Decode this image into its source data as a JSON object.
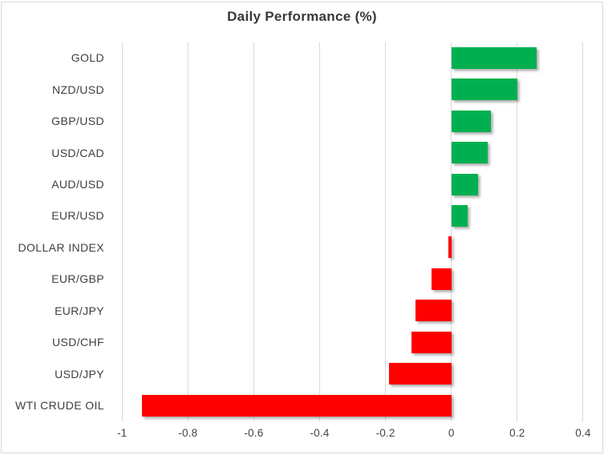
{
  "chart_data": {
    "type": "bar",
    "orientation": "horizontal",
    "title": "Daily Performance (%)",
    "categories": [
      "GOLD",
      "NZD/USD",
      "GBP/USD",
      "USD/CAD",
      "AUD/USD",
      "EUR/USD",
      "DOLLAR INDEX",
      "EUR/GBP",
      "EUR/JPY",
      "USD/CHF",
      "USD/JPY",
      "WTI CRUDE OIL"
    ],
    "values": [
      0.26,
      0.2,
      0.12,
      0.11,
      0.08,
      0.05,
      -0.01,
      -0.06,
      -0.11,
      -0.12,
      -0.19,
      -0.94
    ],
    "xlabel": "",
    "ylabel": "",
    "xlim": [
      -1,
      0.4
    ],
    "xticks": [
      -1,
      -0.8,
      -0.6,
      -0.4,
      -0.2,
      0,
      0.2,
      0.4
    ],
    "xtick_labels": [
      "-1",
      "-0.8",
      "-0.6",
      "-0.4",
      "-0.2",
      "0",
      "0.2",
      "0.4"
    ],
    "grid": true,
    "legend": false,
    "colors": {
      "positive": "#00B050",
      "negative": "#FF0000",
      "gridline": "#D9D9D9",
      "border": "#D9D9D9",
      "title_text": "#383838",
      "axis_text": "#444444",
      "category_text": "#3F3F3F"
    }
  }
}
